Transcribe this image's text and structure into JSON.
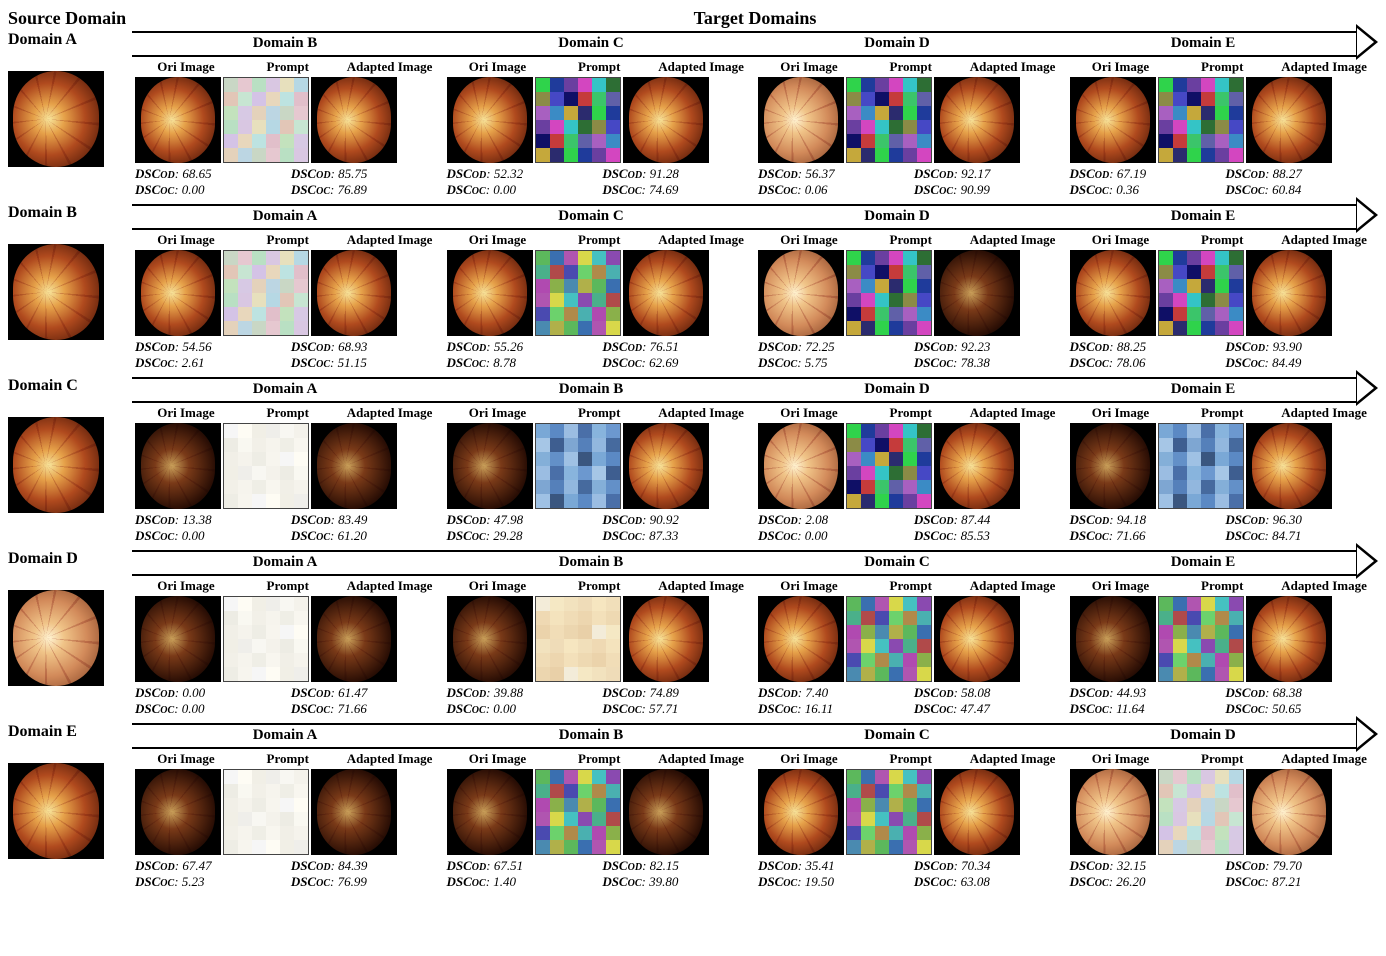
{
  "headers": {
    "source": "Source Domain",
    "target": "Target Domains",
    "sub_ori": "Ori Image",
    "sub_prompt": "Prompt",
    "sub_adapted": "Adapted Image",
    "metric_od_prefix": "DSC",
    "metric_od_sub": "OD",
    "metric_oc_prefix": "DSC",
    "metric_oc_sub": "OC"
  },
  "domain_order": [
    "A",
    "B",
    "C",
    "D",
    "E"
  ],
  "prompt_palettes": {
    "light": [
      "#f6f6f6",
      "#fefcf4",
      "#f1efe6",
      "#efeeea",
      "#f8f7f2",
      "#f4f2eb",
      "#edece4",
      "#f9f8f1",
      "#f2f0e8",
      "#f6f4ed",
      "#efeee6",
      "#f8f6ef",
      "#f1efe7",
      "#f5f3ec",
      "#eeede5",
      "#f7f5ee"
    ],
    "pastel": [
      "#c9d7c5",
      "#e6c8d0",
      "#b9e0c3",
      "#d9c7e2",
      "#e7e0bd",
      "#b6d8e4",
      "#e2c6b7",
      "#c7e5d2",
      "#d4c3e6",
      "#e8d7bc",
      "#bde3e1",
      "#e1bfca",
      "#c3e2bd",
      "#d7c9e4",
      "#e4d2bb",
      "#bcd6e3"
    ],
    "vivid": [
      "#2fd34b",
      "#1f3b9b",
      "#6a3fa0",
      "#d346c0",
      "#34c4c6",
      "#2d6e34",
      "#8b8b46",
      "#4648c5",
      "#0f0f66",
      "#c53b3b",
      "#3bc56a",
      "#6060a8",
      "#a860c0",
      "#3b8bc5",
      "#c5a83b",
      "#2b2b6e"
    ],
    "cool": [
      "#7aa8d6",
      "#5b89c4",
      "#9bbde2",
      "#4a6fa8",
      "#88b4dd",
      "#6c98cf",
      "#a6c6e6",
      "#3e5e90",
      "#7ea6d2",
      "#5580ba",
      "#92b7de",
      "#466a9e",
      "#84afd8",
      "#6390c8",
      "#9fc1e4",
      "#3a567f"
    ],
    "mixed": [
      "#5cb85c",
      "#3a6fb0",
      "#b055b0",
      "#d8d84a",
      "#45c1c1",
      "#8a4ab0",
      "#4ab08a",
      "#b04a4a",
      "#4a4ab0",
      "#6cd26c",
      "#b08a4a",
      "#4ab0b0",
      "#b04ab0",
      "#8ab04a",
      "#4a8ab0",
      "#b0b04a"
    ],
    "warm": [
      "#f3ecd9",
      "#f5e8c4",
      "#f2e2be",
      "#efdcb8",
      "#f6e6c0",
      "#f1dfba",
      "#efd9b3",
      "#f4e3bd",
      "#f0dcb6",
      "#edd6af",
      "#f3e0ba",
      "#eed9b2",
      "#ebd3ab",
      "#f1ddb7",
      "#ecd6af",
      "#e9d0a8"
    ]
  },
  "rows": [
    {
      "source": "A",
      "source_style": "bright",
      "targets": [
        {
          "domain": "B",
          "ori_style": "bright",
          "adapted_style": "bright",
          "palette": "pastel",
          "ori_od": "68.65",
          "ori_oc": "0.00",
          "ad_od": "85.75",
          "ad_oc": "76.89"
        },
        {
          "domain": "C",
          "ori_style": "bright",
          "adapted_style": "bright",
          "palette": "vivid",
          "ori_od": "52.32",
          "ori_oc": "0.00",
          "ad_od": "91.28",
          "ad_oc": "74.69"
        },
        {
          "domain": "D",
          "ori_style": "pale",
          "adapted_style": "bright",
          "palette": "vivid",
          "ori_od": "56.37",
          "ori_oc": "0.06",
          "ad_od": "92.17",
          "ad_oc": "90.99"
        },
        {
          "domain": "E",
          "ori_style": "bright",
          "adapted_style": "bright",
          "palette": "vivid",
          "ori_od": "67.19",
          "ori_oc": "0.36",
          "ad_od": "88.27",
          "ad_oc": "60.84"
        }
      ]
    },
    {
      "source": "B",
      "source_style": "bright",
      "targets": [
        {
          "domain": "A",
          "ori_style": "bright",
          "adapted_style": "bright",
          "palette": "pastel",
          "ori_od": "54.56",
          "ori_oc": "2.61",
          "ad_od": "68.93",
          "ad_oc": "51.15"
        },
        {
          "domain": "C",
          "ori_style": "bright",
          "adapted_style": "bright",
          "palette": "mixed",
          "ori_od": "55.26",
          "ori_oc": "8.78",
          "ad_od": "76.51",
          "ad_oc": "62.69"
        },
        {
          "domain": "D",
          "ori_style": "pale",
          "adapted_style": "dark",
          "palette": "vivid",
          "ori_od": "72.25",
          "ori_oc": "5.75",
          "ad_od": "92.23",
          "ad_oc": "78.38"
        },
        {
          "domain": "E",
          "ori_style": "bright",
          "adapted_style": "bright",
          "palette": "vivid",
          "ori_od": "88.25",
          "ori_oc": "78.06",
          "ad_od": "93.90",
          "ad_oc": "84.49"
        }
      ]
    },
    {
      "source": "C",
      "source_style": "bright",
      "targets": [
        {
          "domain": "A",
          "ori_style": "dark",
          "adapted_style": "dark",
          "palette": "light",
          "ori_od": "13.38",
          "ori_oc": "0.00",
          "ad_od": "83.49",
          "ad_oc": "61.20"
        },
        {
          "domain": "B",
          "ori_style": "dark",
          "adapted_style": "bright",
          "palette": "cool",
          "ori_od": "47.98",
          "ori_oc": "29.28",
          "ad_od": "90.92",
          "ad_oc": "87.33"
        },
        {
          "domain": "D",
          "ori_style": "pale",
          "adapted_style": "bright",
          "palette": "vivid",
          "ori_od": "2.08",
          "ori_oc": "0.00",
          "ad_od": "87.44",
          "ad_oc": "85.53"
        },
        {
          "domain": "E",
          "ori_style": "dark",
          "adapted_style": "bright",
          "palette": "cool",
          "ori_od": "94.18",
          "ori_oc": "71.66",
          "ad_od": "96.30",
          "ad_oc": "84.71"
        }
      ]
    },
    {
      "source": "D",
      "source_style": "pale",
      "targets": [
        {
          "domain": "A",
          "ori_style": "dark",
          "adapted_style": "dark",
          "palette": "light",
          "ori_od": "0.00",
          "ori_oc": "0.00",
          "ad_od": "61.47",
          "ad_oc": "71.66"
        },
        {
          "domain": "B",
          "ori_style": "dark",
          "adapted_style": "bright",
          "palette": "warm",
          "ori_od": "39.88",
          "ori_oc": "0.00",
          "ad_od": "74.89",
          "ad_oc": "57.71"
        },
        {
          "domain": "C",
          "ori_style": "bright",
          "adapted_style": "bright",
          "palette": "mixed",
          "ori_od": "7.40",
          "ori_oc": "16.11",
          "ad_od": "58.08",
          "ad_oc": "47.47"
        },
        {
          "domain": "E",
          "ori_style": "dark",
          "adapted_style": "bright",
          "palette": "mixed",
          "ori_od": "44.93",
          "ori_oc": "11.64",
          "ad_od": "68.38",
          "ad_oc": "50.65"
        }
      ]
    },
    {
      "source": "E",
      "source_style": "bright",
      "targets": [
        {
          "domain": "A",
          "ori_style": "dark",
          "adapted_style": "dark",
          "palette": "light",
          "ori_od": "67.47",
          "ori_oc": "5.23",
          "ad_od": "84.39",
          "ad_oc": "76.99"
        },
        {
          "domain": "B",
          "ori_style": "dark",
          "adapted_style": "dark",
          "palette": "mixed",
          "ori_od": "67.51",
          "ori_oc": "1.40",
          "ad_od": "82.15",
          "ad_oc": "39.80"
        },
        {
          "domain": "C",
          "ori_style": "bright",
          "adapted_style": "bright",
          "palette": "mixed",
          "ori_od": "35.41",
          "ori_oc": "19.50",
          "ad_od": "70.34",
          "ad_oc": "63.08"
        },
        {
          "domain": "D",
          "ori_style": "pale",
          "adapted_style": "pale",
          "palette": "pastel",
          "ori_od": "32.15",
          "ori_oc": "26.20",
          "ad_od": "79.70",
          "ad_oc": "87.21"
        }
      ]
    }
  ]
}
